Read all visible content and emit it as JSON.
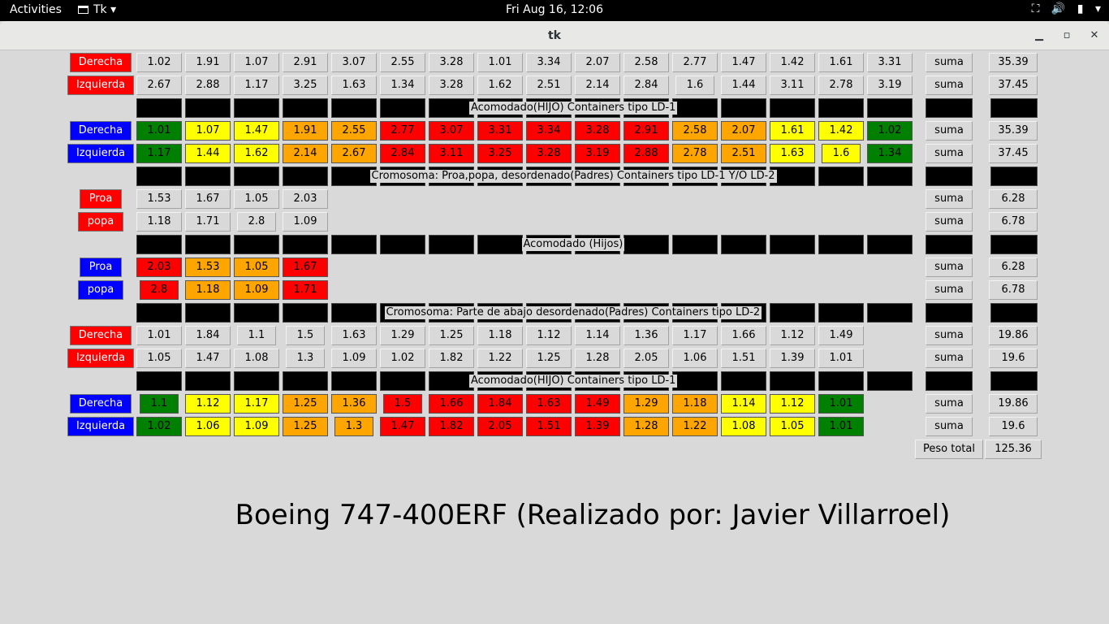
{
  "system_bar": {
    "activities": "Activities",
    "app_menu": "Tk",
    "clock": "Fri Aug 16, 12:06",
    "icons": [
      "network-icon",
      "volume-icon",
      "battery-icon",
      "power-menu-icon"
    ]
  },
  "window": {
    "title": "tk",
    "buttons": [
      "minimize",
      "maximize",
      "close"
    ]
  },
  "colors": {
    "green": "#008000",
    "yellow": "#ffff00",
    "orange": "#ffa500",
    "red": "#ff0000",
    "label_red": "#ff0000",
    "label_blue": "#0000ff",
    "background": "#d9d9d9"
  },
  "sum_label": "suma",
  "rows": [
    {
      "label": "Derecha",
      "label_color": "red",
      "values": [
        "1.02",
        "1.91",
        "1.07",
        "2.91",
        "3.07",
        "2.55",
        "3.28",
        "1.01",
        "3.34",
        "2.07",
        "2.58",
        "2.77",
        "1.47",
        "1.42",
        "1.61",
        "3.31"
      ],
      "cell_colors": null,
      "total": "35.39"
    },
    {
      "label": "Izquierda",
      "label_color": "red",
      "values": [
        "2.67",
        "2.88",
        "1.17",
        "3.25",
        "1.63",
        "1.34",
        "3.28",
        "1.62",
        "2.51",
        "2.14",
        "2.84",
        "1.6",
        "1.44",
        "3.11",
        "2.78",
        "3.19"
      ],
      "cell_colors": null,
      "total": "37.45"
    },
    {
      "header": "Acomodado(HIJO) Containers tipo LD-1"
    },
    {
      "label": "Derecha",
      "label_color": "blue",
      "values": [
        "1.01",
        "1.07",
        "1.47",
        "1.91",
        "2.55",
        "2.77",
        "3.07",
        "3.31",
        "3.34",
        "3.28",
        "2.91",
        "2.58",
        "2.07",
        "1.61",
        "1.42",
        "1.02"
      ],
      "cell_colors": [
        "green",
        "yellow",
        "yellow",
        "orange",
        "orange",
        "red",
        "red",
        "red",
        "red",
        "red",
        "red",
        "orange",
        "orange",
        "yellow",
        "yellow",
        "green"
      ],
      "total": "35.39"
    },
    {
      "label": "Izquierda",
      "label_color": "blue",
      "values": [
        "1.17",
        "1.44",
        "1.62",
        "2.14",
        "2.67",
        "2.84",
        "3.11",
        "3.25",
        "3.28",
        "3.19",
        "2.88",
        "2.78",
        "2.51",
        "1.63",
        "1.6",
        "1.34"
      ],
      "cell_colors": [
        "green",
        "yellow",
        "yellow",
        "orange",
        "orange",
        "red",
        "red",
        "red",
        "red",
        "red",
        "red",
        "orange",
        "orange",
        "yellow",
        "yellow",
        "green"
      ],
      "total": "37.45"
    },
    {
      "header": "Cromosoma: Proa,popa, desordenado(Padres)  Containers tipo LD-1 Y/O LD-2"
    },
    {
      "label": "Proa",
      "label_color": "red",
      "values": [
        "1.53",
        "1.67",
        "1.05",
        "2.03"
      ],
      "cell_colors": null,
      "total": "6.28"
    },
    {
      "label": "popa",
      "label_color": "red",
      "values": [
        "1.18",
        "1.71",
        "2.8",
        "1.09"
      ],
      "cell_colors": null,
      "total": "6.78"
    },
    {
      "header": "Acomodado (Hijos)"
    },
    {
      "label": "Proa",
      "label_color": "blue",
      "values": [
        "2.03",
        "1.53",
        "1.05",
        "1.67"
      ],
      "cell_colors": [
        "red",
        "orange",
        "orange",
        "red"
      ],
      "total": "6.28"
    },
    {
      "label": "popa",
      "label_color": "blue",
      "values": [
        "2.8",
        "1.18",
        "1.09",
        "1.71"
      ],
      "cell_colors": [
        "red",
        "orange",
        "orange",
        "red"
      ],
      "total": "6.78"
    },
    {
      "header": "Cromosoma: Parte de abajo desordenado(Padres)  Containers tipo LD-2"
    },
    {
      "label": "Derecha",
      "label_color": "red",
      "values": [
        "1.01",
        "1.84",
        "1.1",
        "1.5",
        "1.63",
        "1.29",
        "1.25",
        "1.18",
        "1.12",
        "1.14",
        "1.36",
        "1.17",
        "1.66",
        "1.12",
        "1.49"
      ],
      "cell_colors": null,
      "total": "19.86"
    },
    {
      "label": "Izquierda",
      "label_color": "red",
      "values": [
        "1.05",
        "1.47",
        "1.08",
        "1.3",
        "1.09",
        "1.02",
        "1.82",
        "1.22",
        "1.25",
        "1.28",
        "2.05",
        "1.06",
        "1.51",
        "1.39",
        "1.01"
      ],
      "cell_colors": null,
      "total": "19.6"
    },
    {
      "header": "Acomodado(HIJO) Containers tipo LD-1"
    },
    {
      "label": "Derecha",
      "label_color": "blue",
      "values": [
        "1.1",
        "1.12",
        "1.17",
        "1.25",
        "1.36",
        "1.5",
        "1.66",
        "1.84",
        "1.63",
        "1.49",
        "1.29",
        "1.18",
        "1.14",
        "1.12",
        "1.01"
      ],
      "cell_colors": [
        "green",
        "yellow",
        "yellow",
        "orange",
        "orange",
        "red",
        "red",
        "red",
        "red",
        "red",
        "orange",
        "orange",
        "yellow",
        "yellow",
        "green"
      ],
      "total": "19.86"
    },
    {
      "label": "Izquierda",
      "label_color": "blue",
      "values": [
        "1.02",
        "1.06",
        "1.09",
        "1.25",
        "1.3",
        "1.47",
        "1.82",
        "2.05",
        "1.51",
        "1.39",
        "1.28",
        "1.22",
        "1.08",
        "1.05",
        "1.01"
      ],
      "cell_colors": [
        "green",
        "yellow",
        "yellow",
        "orange",
        "orange",
        "red",
        "red",
        "red",
        "red",
        "red",
        "orange",
        "orange",
        "yellow",
        "yellow",
        "green"
      ],
      "total": "19.6"
    }
  ],
  "grand_total": {
    "label": "Peso total",
    "value": "125.36"
  },
  "footer_title": "Boeing 747-400ERF (Realizado por: Javier Villarroel)"
}
